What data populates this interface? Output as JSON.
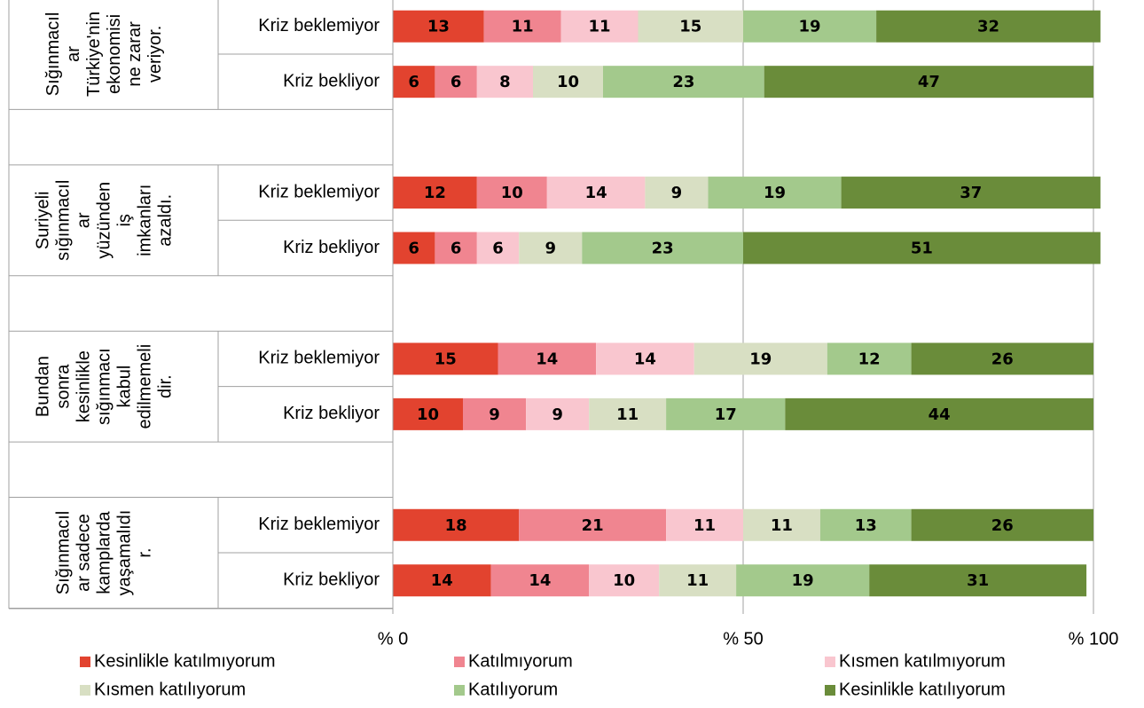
{
  "chart_data": {
    "type": "bar",
    "orientation": "horizontal",
    "stacked": true,
    "groups": [
      {
        "label": [
          "Sığınmacıl",
          "ar",
          "Türkiye'nin",
          "ekonomisi",
          "ne zarar",
          "veriyor."
        ]
      },
      {
        "label": [
          "Suriyeli",
          "sığınmacıl",
          "ar",
          "yüzünden",
          "iş",
          "imkanları",
          "azaldı."
        ]
      },
      {
        "label": [
          "Bundan",
          "sonra",
          "kesinlikle",
          "sığınmacı",
          "kabul",
          "edilmemeli",
          "dir."
        ]
      },
      {
        "label": [
          "Sığınmacıl",
          "ar sadece",
          "kamplarda",
          "yaşamalıdı",
          "r."
        ]
      }
    ],
    "categories": [
      "Kriz beklemiyor",
      "Kriz bekliyor",
      "Kriz beklemiyor",
      "Kriz bekliyor",
      "Kriz beklemiyor",
      "Kriz bekliyor",
      "Kriz beklemiyor",
      "Kriz bekliyor"
    ],
    "series": [
      {
        "name": "Kesinlikle katılmıyorum",
        "color": "#e2432f",
        "values": [
          13,
          6,
          12,
          6,
          15,
          10,
          18,
          14
        ]
      },
      {
        "name": "Katılmıyorum",
        "color": "#f08590",
        "values": [
          11,
          6,
          10,
          6,
          14,
          9,
          21,
          14
        ]
      },
      {
        "name": "Kısmen katılmıyorum",
        "color": "#f9c6cf",
        "values": [
          11,
          8,
          14,
          6,
          14,
          9,
          11,
          10
        ]
      },
      {
        "name": "Kısmen katılıyorum",
        "color": "#d8dfc3",
        "values": [
          15,
          10,
          9,
          9,
          19,
          11,
          11,
          11
        ]
      },
      {
        "name": "Katılıyorum",
        "color": "#a3c98c",
        "values": [
          19,
          23,
          19,
          23,
          12,
          17,
          13,
          19
        ]
      },
      {
        "name": "Kesinlikle katılıyorum",
        "color": "#6a8c3a",
        "values": [
          32,
          47,
          37,
          51,
          26,
          44,
          26,
          31
        ]
      }
    ],
    "xlim": [
      0,
      100
    ],
    "xticks": [
      {
        "value": 0,
        "label": "% 0"
      },
      {
        "value": 50,
        "label": "% 50"
      },
      {
        "value": 100,
        "label": "% 100"
      }
    ],
    "grid": true,
    "legend": "bottom"
  }
}
